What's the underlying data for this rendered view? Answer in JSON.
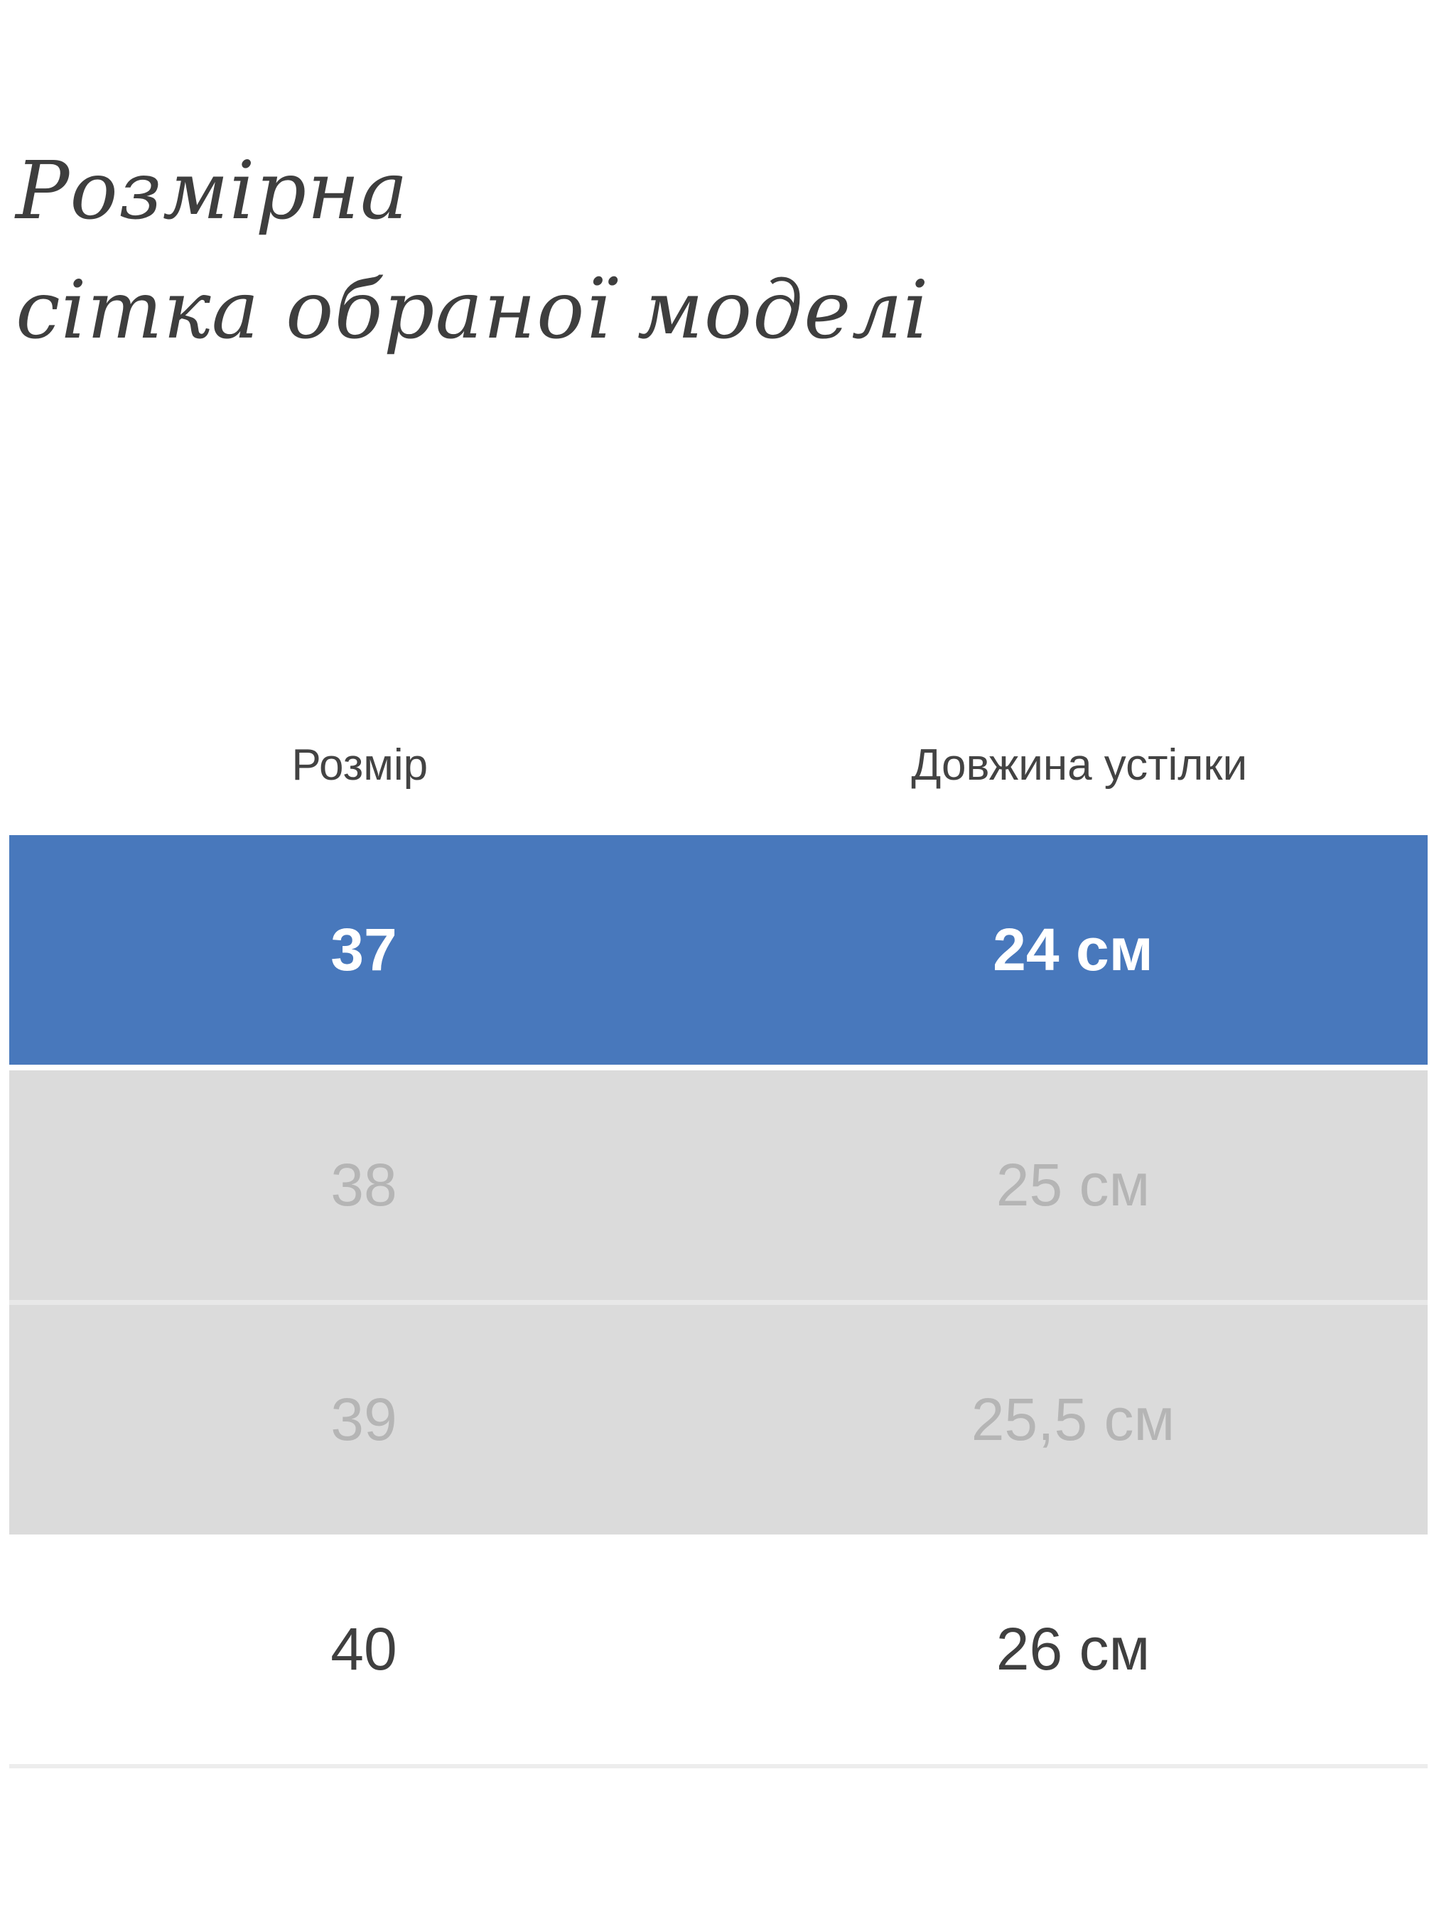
{
  "page": {
    "title_line1": "Розмірна",
    "title_line2": "сітка обраної моделі"
  },
  "table": {
    "columns": [
      {
        "label": "Розмір"
      },
      {
        "label": "Довжина устілки"
      }
    ],
    "rows": [
      {
        "size": "37",
        "insole_length": "24 см",
        "state": "selected"
      },
      {
        "size": "38",
        "insole_length": "25 см",
        "state": "unavailable"
      },
      {
        "size": "39",
        "insole_length": "25,5 см",
        "state": "unavailable"
      },
      {
        "size": "40",
        "insole_length": "26 см",
        "state": "available"
      }
    ]
  },
  "colors": {
    "selected_row_bg": "#4878bc",
    "selected_row_text": "#ffffff",
    "unavailable_row_bg": "#dbdbdb",
    "unavailable_row_text": "#b5b5b5",
    "unavailable_separator": "#e8e8e8",
    "available_row_text": "#3f3f3f",
    "header_text": "#434343",
    "title_text": "#3e3e3e",
    "divider": "#ededed"
  }
}
